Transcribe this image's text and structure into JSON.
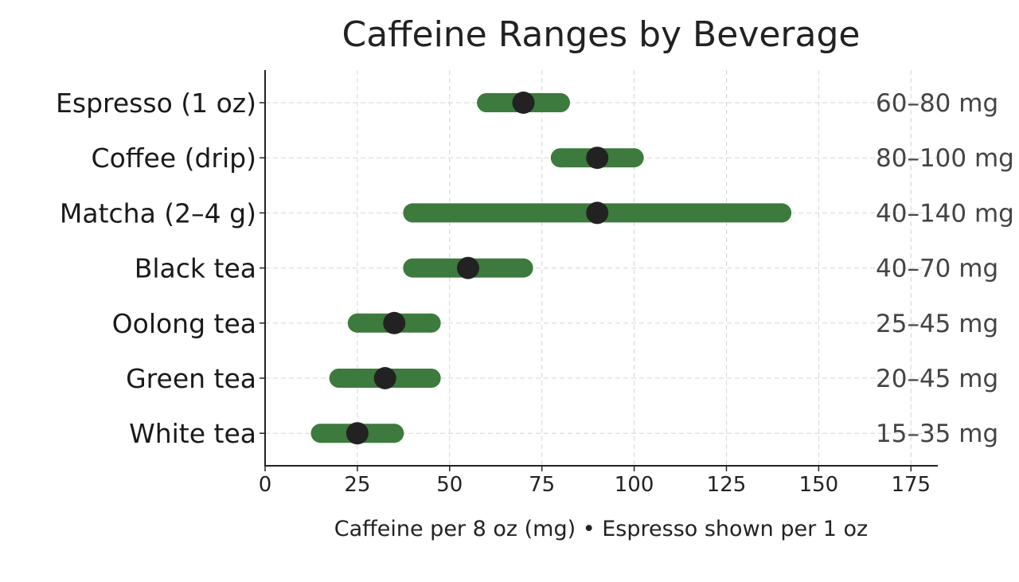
{
  "chart_data": {
    "type": "range-dot",
    "title": "Caffeine Ranges by Beverage",
    "xlabel": "Caffeine per 8 oz (mg)  •  Espresso shown per 1 oz",
    "xlim": [
      0,
      180
    ],
    "xticks": [
      0,
      25,
      50,
      75,
      100,
      125,
      150,
      175
    ],
    "grid": true,
    "colors": {
      "range": "#3d7a3d",
      "dot": "#222222"
    },
    "items": [
      {
        "label": "Espresso (1 oz)",
        "min": 60,
        "max": 80,
        "mid": 70,
        "range_label": "60–80 mg"
      },
      {
        "label": "Coffee (drip)",
        "min": 80,
        "max": 100,
        "mid": 90,
        "range_label": "80–100 mg"
      },
      {
        "label": "Matcha (2–4 g)",
        "min": 40,
        "max": 140,
        "mid": 90,
        "range_label": "40–140 mg"
      },
      {
        "label": "Black tea",
        "min": 40,
        "max": 70,
        "mid": 55,
        "range_label": "40–70 mg"
      },
      {
        "label": "Oolong tea",
        "min": 25,
        "max": 45,
        "mid": 35,
        "range_label": "25–45 mg"
      },
      {
        "label": "Green tea",
        "min": 20,
        "max": 45,
        "mid": 32.5,
        "range_label": "20–45 mg"
      },
      {
        "label": "White tea",
        "min": 15,
        "max": 35,
        "mid": 25,
        "range_label": "15–35 mg"
      }
    ]
  }
}
